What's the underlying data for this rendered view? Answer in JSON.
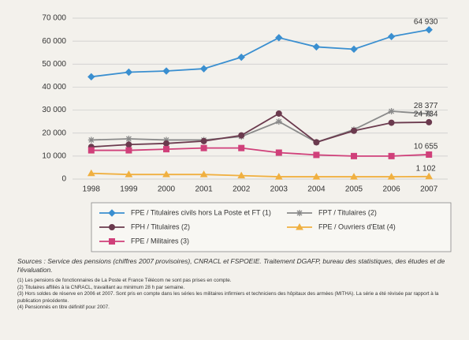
{
  "chart_data": {
    "type": "line",
    "x": [
      "1998",
      "1999",
      "2000",
      "2001",
      "2002",
      "2003",
      "2004",
      "2005",
      "2006",
      "2007"
    ],
    "ylim": [
      0,
      70000
    ],
    "yticks": [
      {
        "value": 0,
        "label": "0"
      },
      {
        "value": 10000,
        "label": "10 000"
      },
      {
        "value": 20000,
        "label": "20 000"
      },
      {
        "value": 30000,
        "label": "30 000"
      },
      {
        "value": 40000,
        "label": "40 000"
      },
      {
        "value": 50000,
        "label": "50 000"
      },
      {
        "value": 60000,
        "label": "60 000"
      },
      {
        "value": 70000,
        "label": "70 000"
      }
    ],
    "grid": true,
    "series": [
      {
        "name": "FPE / Titulaires civils hors La Poste et FT (1)",
        "color": "#3a8fd0",
        "marker": "diamond",
        "values": [
          44500,
          46500,
          47000,
          48000,
          53000,
          61500,
          57500,
          56500,
          62000,
          64930
        ],
        "value_labels": [
          null,
          null,
          null,
          null,
          null,
          null,
          null,
          null,
          null,
          "64 930"
        ]
      },
      {
        "name": "FPT / Titulaires (2)",
        "color": "#8a8a8a",
        "marker": "star",
        "values": [
          17000,
          17500,
          17000,
          17000,
          18500,
          25000,
          16000,
          21500,
          29500,
          28377
        ],
        "value_labels": [
          null,
          null,
          null,
          null,
          null,
          null,
          null,
          null,
          null,
          "28 377"
        ]
      },
      {
        "name": "FPH / Titulaires (2)",
        "color": "#6b3a4e",
        "marker": "circle",
        "values": [
          14000,
          15000,
          15500,
          16500,
          19000,
          28500,
          16000,
          21000,
          24500,
          24734
        ],
        "value_labels": [
          null,
          null,
          null,
          null,
          null,
          null,
          null,
          null,
          null,
          "24 734"
        ]
      },
      {
        "name": "FPE / Ouvriers d'Etat (4)",
        "color": "#f0b040",
        "marker": "triangle",
        "values": [
          2500,
          2000,
          2000,
          2000,
          1500,
          1000,
          1000,
          1000,
          1000,
          1102
        ],
        "value_labels": [
          null,
          null,
          null,
          null,
          null,
          null,
          null,
          null,
          null,
          "1 102"
        ]
      },
      {
        "name": "FPE / Militaires (3)",
        "color": "#d0407a",
        "marker": "square",
        "values": [
          12500,
          12500,
          13000,
          13500,
          13500,
          11500,
          10500,
          10000,
          10000,
          10655
        ],
        "value_labels": [
          null,
          null,
          null,
          null,
          null,
          null,
          null,
          null,
          null,
          "10 655"
        ]
      }
    ]
  },
  "notes": {
    "sources": "Sources : Service des pensions (chiffres 2007 provisoires), CNRACL et FSPOEIE. Traitement DGAFP, bureau des statistiques, des études et de l'évaluation.",
    "footnotes": [
      "(1) Les pensions de fonctionnaires de La Poste et France Télécom ne sont pas prises en compte.",
      "(2) Titulaires affiliés à la CNRACL, travaillant au minimum 28 h par semaine.",
      "(3) Hors soldes de réserve en 2006 et 2007. Sont pris en compte dans les séries les militaires infirmiers et techniciens des hôpitaux des armées (MITHA). La série a été révisée par rapport à la publication précédente.",
      "(4) Pensionnés en titre définitif pour 2007."
    ]
  }
}
